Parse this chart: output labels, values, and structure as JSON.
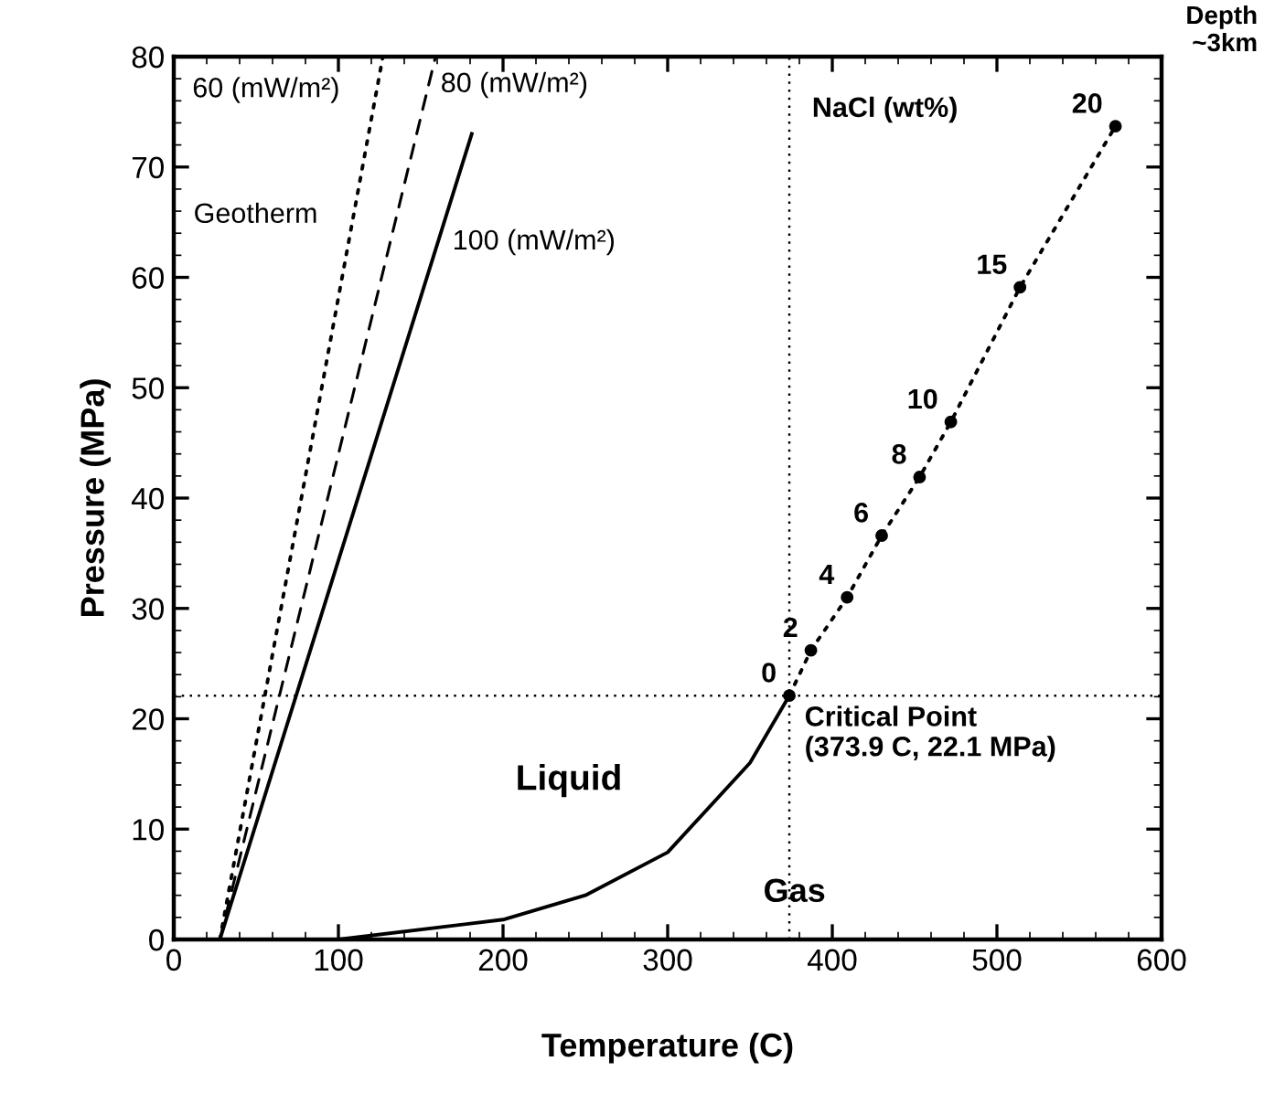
{
  "chart_data": {
    "type": "line",
    "xlabel": "Temperature (C)",
    "ylabel": "Pressure (MPa)",
    "xlim": [
      0,
      600
    ],
    "ylim": [
      0,
      80
    ],
    "xticks": [
      0,
      100,
      200,
      300,
      400,
      500,
      600
    ],
    "yticks": [
      0,
      10,
      20,
      30,
      40,
      50,
      60,
      70,
      80
    ],
    "grid": false,
    "legend": false,
    "series": [
      {
        "color": "#000000",
        "line_style": "dotted",
        "marker": "none",
        "x": [
          28,
          127
        ],
        "values": [
          0,
          80
        ]
      },
      {
        "color": "#000000",
        "line_style": "dashed",
        "marker": "none",
        "x": [
          28,
          159
        ],
        "values": [
          0,
          80
        ]
      },
      {
        "color": "#000000",
        "line_style": "solid",
        "marker": "none",
        "x": [
          28,
          181
        ],
        "values": [
          0,
          73
        ]
      },
      {
        "color": "#000000",
        "line_style": "solid",
        "marker": "none",
        "x": [
          100,
          200,
          250,
          300,
          350,
          373.9
        ],
        "values": [
          0,
          1.8,
          4,
          7.9,
          16,
          22.1
        ]
      },
      {
        "color": "#000000",
        "line_style": "dotted",
        "marker": "circle",
        "x": [
          373.9,
          387,
          409,
          430,
          453,
          472,
          514,
          572
        ],
        "values": [
          22.1,
          26.2,
          31,
          36.6,
          41.9,
          46.9,
          59.1,
          73.7
        ]
      }
    ],
    "ref_lines": [
      {
        "axis": "x",
        "value": 373.9,
        "line_style": "dotted"
      },
      {
        "axis": "y",
        "value": 22.1,
        "line_style": "dotted"
      }
    ],
    "annotations": [
      {
        "text": "60 (mW/m²)",
        "x": 127,
        "y": 80
      },
      {
        "text": "80 (mW/m²)",
        "x": 159,
        "y": 80
      },
      {
        "text": "100 (mW/m²)",
        "x": 160,
        "y": 62
      },
      "Geotherm",
      "NaCl (wt%)",
      "Liquid",
      "Gas",
      {
        "text": "Critical Point\n(373.9 C, 22.1 MPa)",
        "x": 373.9,
        "y": 22.1
      },
      "Depth\n~3km",
      {
        "text": "0",
        "x": 373.9,
        "y": 22.1
      },
      {
        "text": "2",
        "x": 387,
        "y": 26.2
      },
      {
        "text": "4",
        "x": 409,
        "y": 31
      },
      {
        "text": "6",
        "x": 430,
        "y": 36.6
      },
      {
        "text": "8",
        "x": 453,
        "y": 41.9
      },
      {
        "text": "10",
        "x": 472,
        "y": 46.9
      },
      {
        "text": "15",
        "x": 514,
        "y": 59.1
      },
      {
        "text": "20",
        "x": 572,
        "y": 73.7
      }
    ]
  }
}
